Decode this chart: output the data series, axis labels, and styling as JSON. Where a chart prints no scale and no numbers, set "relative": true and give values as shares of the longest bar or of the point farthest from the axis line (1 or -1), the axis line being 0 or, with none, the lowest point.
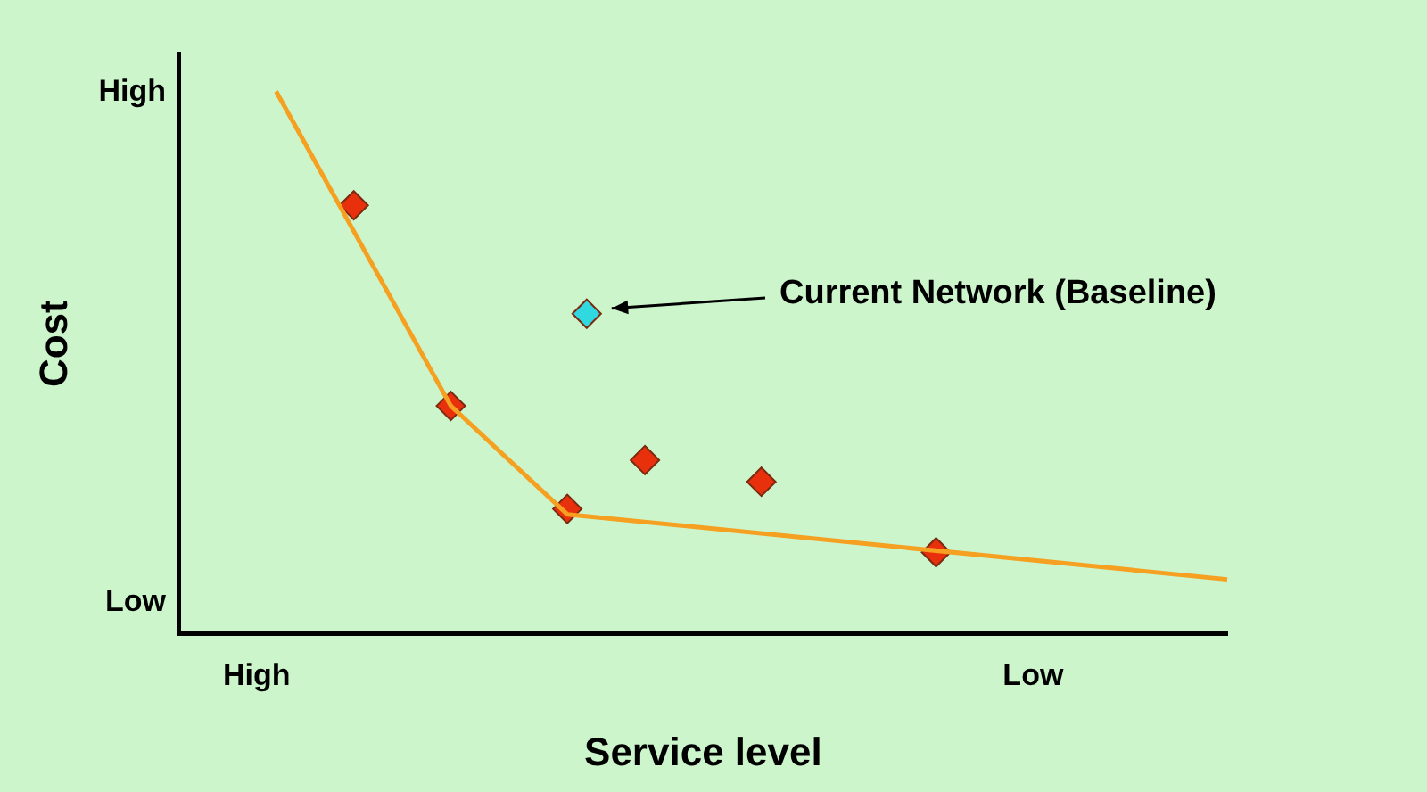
{
  "chart_data": {
    "type": "scatter",
    "xlabel": "Service level",
    "ylabel": "Cost",
    "relative": true,
    "categories": [
      null,
      null,
      null,
      null,
      "High",
      null,
      null,
      null,
      null,
      null,
      null,
      null,
      null,
      null,
      null,
      null,
      null,
      null,
      null,
      null,
      null,
      null,
      null,
      null,
      null,
      null,
      null,
      null,
      null,
      null,
      null,
      null,
      null,
      null,
      null,
      null,
      null,
      null,
      null,
      null,
      null,
      null,
      null,
      null,
      "Low",
      null,
      null,
      null,
      null,
      null,
      null,
      null,
      null,
      null,
      null
    ],
    "series": [
      {
        "type": "line",
        "color": "#f5a020",
        "marker": "none",
        "values": [
          null,
          null,
          null,
          null,
          null,
          1.0,
          null,
          null,
          null,
          null,
          null,
          null,
          null,
          null,
          0.42,
          null,
          null,
          null,
          null,
          null,
          0.22,
          null,
          null,
          null,
          null,
          null,
          null,
          null,
          null,
          null,
          null,
          null,
          null,
          null,
          null,
          null,
          null,
          null,
          null,
          null,
          null,
          null,
          null,
          null,
          null,
          null,
          null,
          null,
          null,
          null,
          null,
          null,
          null,
          null,
          0.1
        ]
      },
      {
        "color": "#e8300c",
        "marker": "diamond",
        "values": [
          null,
          null,
          null,
          null,
          null,
          null,
          null,
          null,
          null,
          0.79,
          null,
          null,
          null,
          null,
          0.42,
          null,
          null,
          null,
          null,
          null,
          0.23,
          null,
          null,
          null,
          0.32,
          null,
          null,
          null,
          null,
          null,
          0.28,
          null,
          null,
          null,
          null,
          null,
          null,
          null,
          null,
          0.15,
          null,
          null,
          null,
          null,
          null,
          null,
          null,
          null,
          null,
          null,
          null,
          null,
          null,
          null,
          null
        ]
      },
      {
        "color": "#30d8e0",
        "marker": "diamond",
        "values": [
          null,
          null,
          null,
          null,
          null,
          null,
          null,
          null,
          null,
          null,
          null,
          null,
          null,
          null,
          null,
          null,
          null,
          null,
          null,
          null,
          null,
          0.59,
          null,
          null,
          null,
          null,
          null,
          null,
          null,
          null,
          null,
          null,
          null,
          null,
          null,
          null,
          null,
          null,
          null,
          null,
          null,
          null,
          null,
          null,
          null,
          null,
          null,
          null,
          null,
          null,
          null,
          null,
          null,
          null,
          null
        ]
      }
    ],
    "annotations": [
      "High",
      "Low",
      "Current Network (Baseline)"
    ]
  }
}
